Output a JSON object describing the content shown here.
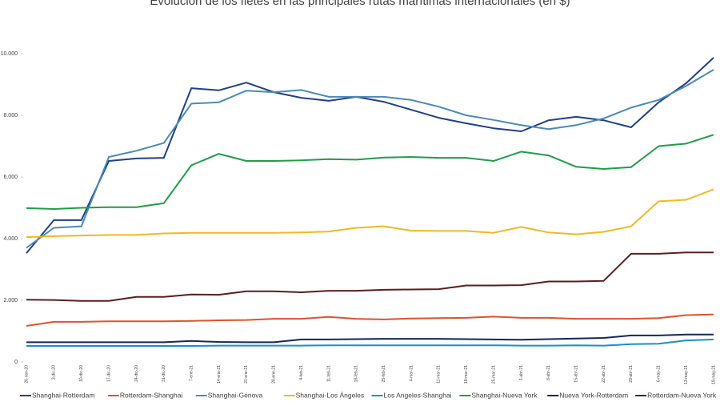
{
  "chart_data": {
    "type": "line",
    "title": "Evolución de los fletes en las principales rutas marítimas internacionales (en $)",
    "categories": [
      "26-nov-20",
      "3-dic-20",
      "10-dic-20",
      "17-dic-20",
      "24-dic-20",
      "31-dic-20",
      "7-ene-21",
      "14-ene-21",
      "21-ene-21",
      "28-ene-21",
      "4-feb-21",
      "11-feb-21",
      "18-feb-21",
      "25-feb-21",
      "4-mar-21",
      "11-mar-21",
      "18-mar-21",
      "25-mar-21",
      "1-abr-21",
      "8-abr-21",
      "15-abr-21",
      "22-abr-21",
      "29-abr-21",
      "6-may-21",
      "13-may-21",
      "19-may-21"
    ],
    "ylim": [
      0,
      10500
    ],
    "yticks": [
      0,
      {
        "value": 2000,
        "label": "2.000"
      },
      {
        "value": 4000,
        "label": "4.000"
      },
      {
        "value": 6000,
        "label": "6.000"
      },
      {
        "value": 8000,
        "label": "8.000"
      },
      {
        "value": 10000,
        "label": "10.000"
      }
    ],
    "grid": false,
    "legend": "bottom",
    "series": [
      {
        "name": "Shanghai-Rotterdam",
        "color": "#1f3f8a",
        "values": [
          3530,
          4600,
          4600,
          6520,
          6600,
          6620,
          8880,
          8810,
          9060,
          8750,
          8570,
          8470,
          8600,
          8440,
          8180,
          7920,
          7740,
          7580,
          7480,
          7840,
          7950,
          7840,
          7610,
          8420,
          9040,
          9870
        ]
      },
      {
        "name": "Rotterdam-Shanghai",
        "color": "#e0522a",
        "values": [
          1170,
          1300,
          1300,
          1320,
          1320,
          1320,
          1330,
          1350,
          1360,
          1400,
          1400,
          1460,
          1400,
          1380,
          1410,
          1420,
          1430,
          1470,
          1430,
          1430,
          1400,
          1400,
          1400,
          1420,
          1520,
          1540
        ]
      },
      {
        "name": "Shanghai-Génova",
        "color": "#4a8ab5",
        "values": [
          3700,
          4350,
          4400,
          6650,
          6850,
          7100,
          8380,
          8420,
          8800,
          8750,
          8820,
          8600,
          8600,
          8600,
          8500,
          8280,
          8000,
          7850,
          7680,
          7550,
          7680,
          7900,
          8250,
          8500,
          8950,
          9480
        ]
      },
      {
        "name": "Shanghai-Los Ángeles",
        "color": "#f2b822",
        "values": [
          4050,
          4080,
          4100,
          4120,
          4120,
          4170,
          4190,
          4190,
          4190,
          4190,
          4200,
          4230,
          4350,
          4400,
          4260,
          4250,
          4250,
          4190,
          4380,
          4200,
          4140,
          4220,
          4400,
          5210,
          5260,
          5600
        ]
      },
      {
        "name": "Los Angeles-Shanghai",
        "color": "#1a8fc9",
        "values": [
          520,
          520,
          520,
          520,
          520,
          520,
          520,
          530,
          530,
          530,
          530,
          540,
          540,
          540,
          540,
          540,
          540,
          540,
          530,
          530,
          540,
          530,
          580,
          590,
          700,
          730
        ]
      },
      {
        "name": "Shanghai-Nueva York",
        "color": "#1f9e48",
        "values": [
          4990,
          4960,
          5000,
          5020,
          5020,
          5150,
          6380,
          6750,
          6520,
          6520,
          6540,
          6580,
          6560,
          6630,
          6650,
          6620,
          6620,
          6520,
          6820,
          6700,
          6330,
          6260,
          6320,
          7000,
          7080,
          7370
        ]
      },
      {
        "name": "Nueva York-Rotterdam",
        "color": "#14265e",
        "values": [
          640,
          640,
          640,
          640,
          640,
          640,
          680,
          650,
          640,
          640,
          730,
          730,
          740,
          750,
          750,
          750,
          740,
          730,
          720,
          740,
          760,
          780,
          860,
          860,
          890,
          890
        ]
      },
      {
        "name": "Rotterdam-Nueva York",
        "color": "#5a1e1e",
        "values": [
          2020,
          2010,
          1980,
          1980,
          2110,
          2110,
          2190,
          2180,
          2290,
          2290,
          2260,
          2310,
          2310,
          2340,
          2350,
          2360,
          2480,
          2480,
          2490,
          2610,
          2610,
          2630,
          3510,
          3510,
          3550,
          3550
        ]
      }
    ]
  }
}
